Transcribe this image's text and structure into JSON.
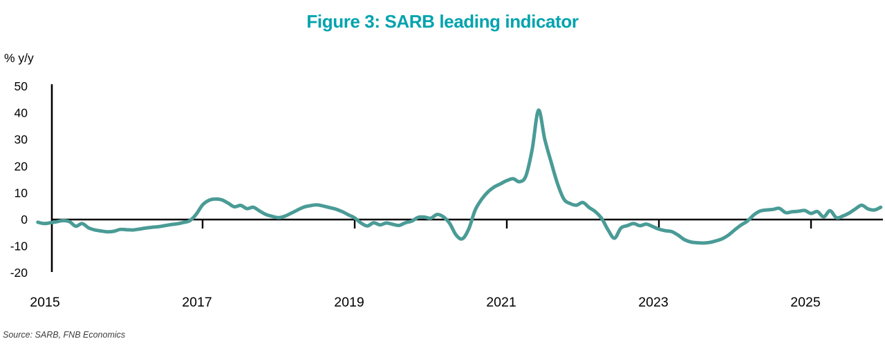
{
  "title": "Figure 3: SARB leading indicator",
  "source": "Source: SARB, FNB Economics",
  "chart_data": {
    "type": "line",
    "title": "Figure 3: SARB leading indicator",
    "xlabel": "",
    "ylabel": "% y/y",
    "ylim": [
      -20,
      50
    ],
    "yticks": [
      50,
      40,
      30,
      20,
      10,
      0,
      -10,
      -20
    ],
    "xticks": [
      2015,
      2017,
      2019,
      2021,
      2023,
      2025
    ],
    "grid": false,
    "legend": "none",
    "colors": {
      "line": "#4a9b96",
      "title": "#00a3ae",
      "axis": "#000000",
      "source_text": "#3d3d3d"
    },
    "series": [
      {
        "name": "SARB leading indicator, % y/y",
        "start": "2014-11",
        "frequency": "monthly",
        "values": [
          -1.0,
          -1.5,
          -1.2,
          -0.8,
          -0.4,
          -0.8,
          -2.5,
          -1.5,
          -3.1,
          -3.9,
          -4.3,
          -4.6,
          -4.4,
          -3.7,
          -3.8,
          -3.9,
          -3.6,
          -3.2,
          -2.9,
          -2.7,
          -2.3,
          -1.9,
          -1.6,
          -1.1,
          -0.4,
          2.0,
          5.5,
          7.2,
          7.7,
          7.4,
          6.2,
          4.8,
          5.3,
          4.1,
          4.6,
          3.2,
          1.9,
          1.2,
          0.7,
          1.3,
          2.4,
          3.6,
          4.7,
          5.2,
          5.5,
          5.1,
          4.5,
          3.9,
          3.0,
          1.8,
          0.6,
          -1.3,
          -2.4,
          -1.2,
          -2.0,
          -1.3,
          -1.8,
          -2.2,
          -1.2,
          -0.6,
          0.8,
          0.9,
          0.5,
          1.9,
          1.0,
          -1.5,
          -5.8,
          -7.2,
          -3.5,
          3.5,
          7.5,
          10.3,
          12.2,
          13.4,
          14.6,
          15.3,
          14.2,
          16.3,
          26.3,
          41.0,
          30.0,
          21.5,
          13.5,
          7.7,
          6.0,
          5.4,
          6.4,
          4.5,
          2.9,
          0.3,
          -4.0,
          -7.0,
          -3.2,
          -2.3,
          -1.5,
          -2.3,
          -1.7,
          -2.6,
          -3.6,
          -4.2,
          -4.5,
          -5.8,
          -7.5,
          -8.4,
          -8.7,
          -8.8,
          -8.6,
          -8.0,
          -7.2,
          -5.8,
          -3.8,
          -2.0,
          -0.5,
          1.8,
          3.2,
          3.6,
          3.8,
          4.2,
          2.6,
          2.9,
          3.1,
          3.4,
          2.3,
          3.0,
          1.0,
          3.3,
          0.7,
          1.3,
          2.4,
          4.0,
          5.4,
          4.0,
          3.6,
          4.6
        ]
      }
    ]
  }
}
